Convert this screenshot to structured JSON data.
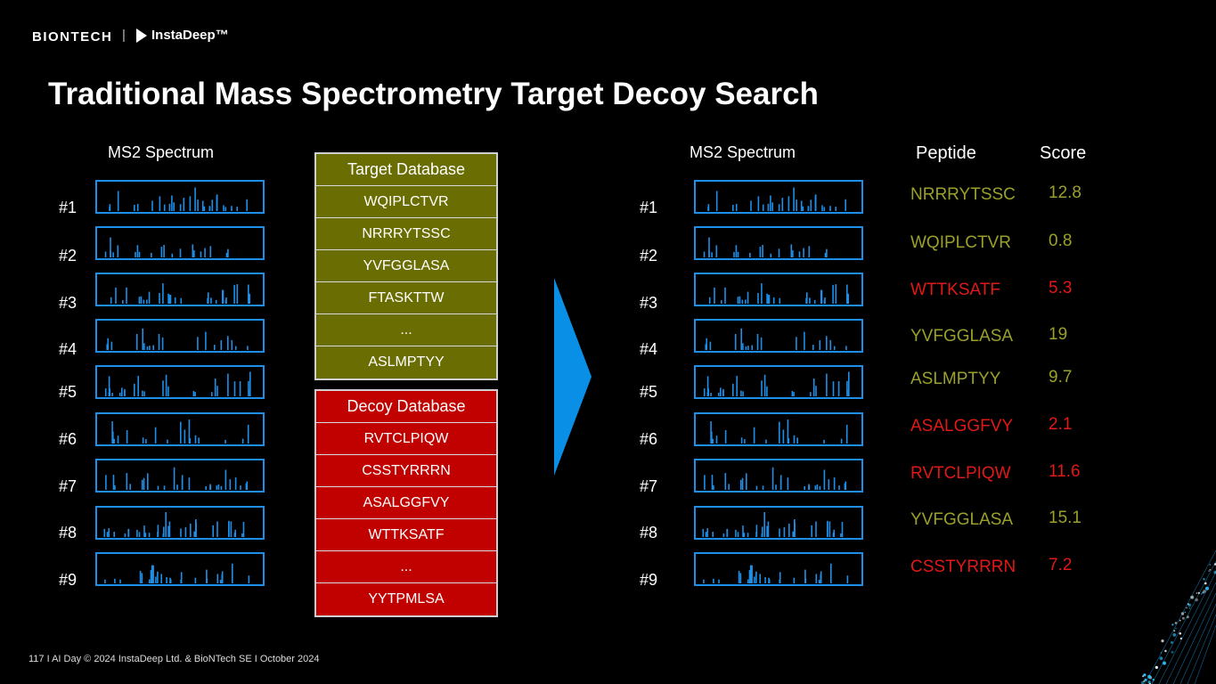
{
  "logos": {
    "biontech": "BIONTECH",
    "separator": "|",
    "instadeep": "InstaDeep™"
  },
  "title": "Traditional Mass Spectrometry Target Decoy Search",
  "left_panel": {
    "header": "MS2 Spectrum",
    "rows": [
      "#1",
      "#2",
      "#3",
      "#4",
      "#5",
      "#6",
      "#7",
      "#8",
      "#9"
    ]
  },
  "target_db": {
    "header": "Target Database",
    "items": [
      "WQIPLCTVR",
      "NRRRYTSSC",
      "YVFGGLASA",
      "FTASKTTW",
      "...",
      "ASLMPTYY"
    ]
  },
  "decoy_db": {
    "header": "Decoy Database",
    "items": [
      "RVTCLPIQW",
      "CSSTYRRRN",
      "ASALGGFVY",
      "WTTKSATF",
      "...",
      "YYTPMLSA"
    ]
  },
  "right_panel": {
    "header": "MS2 Spectrum",
    "peptide_header": "Peptide",
    "score_header": "Score",
    "rows": [
      {
        "label": "#1",
        "peptide": "NRRRYTSSC",
        "score": "12.8",
        "type": "target"
      },
      {
        "label": "#2",
        "peptide": "WQIPLCTVR",
        "score": "0.8",
        "type": "target"
      },
      {
        "label": "#3",
        "peptide": "WTTKSATF",
        "score": "5.3",
        "type": "decoy"
      },
      {
        "label": "#4",
        "peptide": "YVFGGLASA",
        "score": "19",
        "type": "target"
      },
      {
        "label": "#5",
        "peptide": "ASLMPTYY",
        "score": "9.7",
        "type": "target"
      },
      {
        "label": "#6",
        "peptide": "ASALGGFVY",
        "score": "2.1",
        "type": "decoy"
      },
      {
        "label": "#7",
        "peptide": "RVTCLPIQW",
        "score": "11.6",
        "type": "decoy"
      },
      {
        "label": "#8",
        "peptide": "YVFGGLASA",
        "score": "15.1",
        "type": "target"
      },
      {
        "label": "#9",
        "peptide": "CSSTYRRRN",
        "score": "7.2",
        "type": "decoy"
      }
    ]
  },
  "colors": {
    "target": "#9aa02a",
    "decoy": "#e01818",
    "spectrum": "#1e8fe8",
    "target_db": "#6a6e02",
    "decoy_db": "#c10000"
  },
  "footer": "117   I   AI Day © 2024 InstaDeep Ltd. & BioNTech SE   I   October 2024"
}
